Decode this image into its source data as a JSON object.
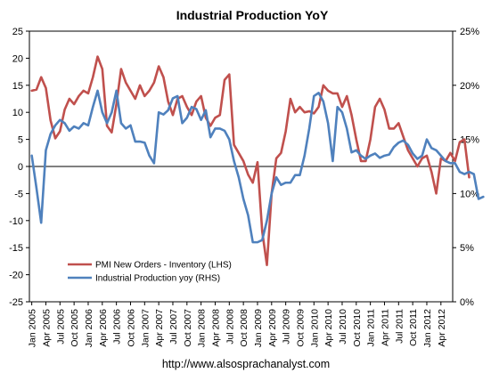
{
  "chart_data": {
    "type": "line",
    "title": "Industrial Production YoY",
    "footer": "http://www.alsosprachanalyst.com",
    "y_left": {
      "min": -25,
      "max": 25,
      "step": 5,
      "ticks": [
        "25",
        "20",
        "15",
        "10",
        "5",
        "0",
        "-5",
        "-10",
        "-15",
        "-20",
        "-25"
      ]
    },
    "y_right": {
      "min": 0,
      "max": 25,
      "ticks": [
        "25%",
        "20%",
        "15%",
        "10%",
        "5%",
        "0%"
      ]
    },
    "x_start": "Jan 2005",
    "x_end": "Jun 2012",
    "x_tick_labels": [
      "Jan 2005",
      "Apr 2005",
      "Jul 2005",
      "Oct 2005",
      "Jan 2006",
      "Apr 2006",
      "Jul 2006",
      "Oct 2006",
      "Jan 2007",
      "Apr 2007",
      "Jul 2007",
      "Oct 2007",
      "Jan 2008",
      "Apr 2008",
      "Jul 2008",
      "Oct 2008",
      "Jan 2009",
      "Apr 2009",
      "Jul 2009",
      "Oct 2009",
      "Jan 2010",
      "Apr 2010",
      "Jul 2010",
      "Oct 2010",
      "Jan 2011",
      "Apr 2011",
      "Jul 2011",
      "Oct 2011",
      "Jan 2012",
      "Apr 2012"
    ],
    "zero_line": true,
    "grid": false,
    "legend_position": "bottom-left",
    "series": [
      {
        "name": "PMI New Orders - Inventory (LHS)",
        "axis": "left",
        "color": "#C0504D",
        "values": [
          14,
          14.2,
          16.5,
          14.5,
          8.5,
          5.2,
          6.5,
          10.5,
          12.5,
          11.5,
          13,
          14,
          13.5,
          16.5,
          20.3,
          18,
          7.5,
          6.3,
          11.5,
          18,
          15.5,
          14,
          12.5,
          15,
          13,
          14,
          15.5,
          18.5,
          16.5,
          12,
          9.5,
          12.5,
          13,
          11,
          9.5,
          12,
          13,
          9,
          7.5,
          9,
          9.5,
          16,
          17,
          4,
          2.5,
          1,
          -1.5,
          -3,
          0.8,
          -12,
          -18.2,
          -5,
          1.5,
          2.5,
          6.5,
          12.5,
          10,
          11,
          10,
          10.2,
          9.8,
          11,
          15,
          14,
          13.5,
          13.5,
          11,
          13,
          9.5,
          5,
          1,
          1,
          5,
          11,
          12.5,
          10.5,
          7,
          7,
          8,
          5.5,
          3,
          1.5,
          0,
          1.5,
          2,
          -1,
          -5,
          1.5,
          1,
          2.5,
          1,
          4.5,
          5,
          -2
        ]
      },
      {
        "name": "Industrial Production yoy (RHS)",
        "axis": "right",
        "color": "#4F81BD",
        "values": [
          13.5,
          10.5,
          7.3,
          14,
          15.5,
          16.3,
          16.8,
          16.5,
          15.8,
          16.2,
          16,
          16.5,
          16.3,
          18,
          19.5,
          17.5,
          16.5,
          17.5,
          19.5,
          16.5,
          16,
          16.3,
          14.8,
          14.8,
          14.7,
          13.5,
          12.8,
          17.5,
          17.3,
          17.7,
          18.8,
          19,
          16.5,
          17,
          18,
          17.8,
          16.8,
          17.7,
          15.2,
          16,
          16,
          15.8,
          15,
          13,
          11.5,
          9.5,
          8,
          5.5,
          5.5,
          5.7,
          7.5,
          10,
          11.5,
          10.8,
          11,
          11,
          11.7,
          11.7,
          13.5,
          16,
          19,
          19.3,
          18.5,
          16.5,
          13,
          18,
          17.5,
          16,
          13.8,
          14,
          13.5,
          13.2,
          13.5,
          13.7,
          13.3,
          13.5,
          13.6,
          14.3,
          14.7,
          14.9,
          14.5,
          13.7,
          13.2,
          13.5,
          15,
          14.2,
          14,
          13.5,
          13,
          12.8,
          12.8,
          12,
          11.8,
          12,
          11.8,
          9.5,
          9.7
        ]
      }
    ]
  }
}
